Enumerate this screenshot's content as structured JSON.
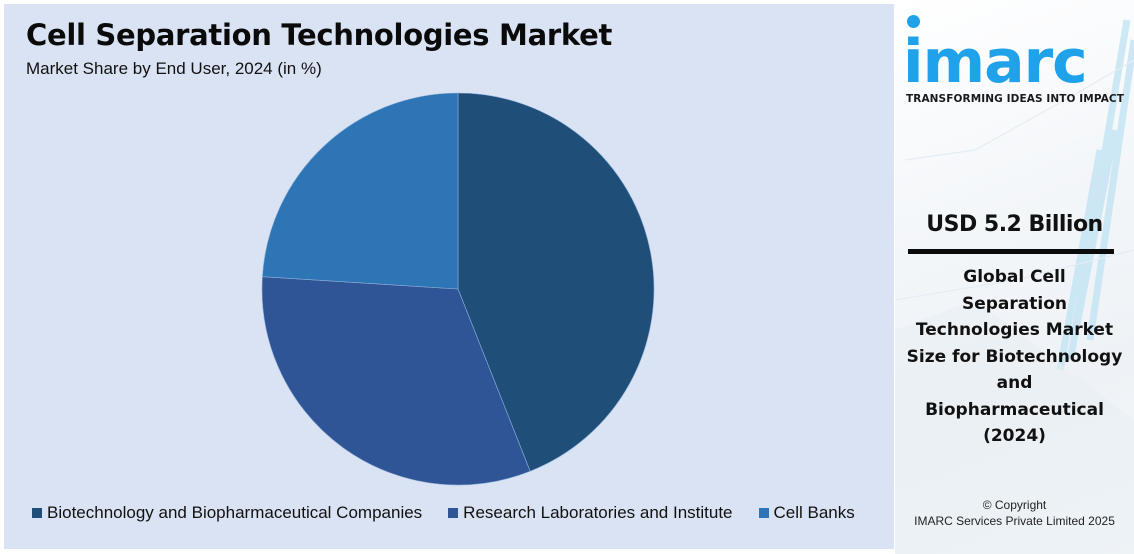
{
  "chart": {
    "title": "Cell Separation Technologies Market",
    "subtitle": "Market Share by End User, 2024 (in %)"
  },
  "legend": [
    {
      "label": "Biotechnology and Biopharmaceutical Companies",
      "color": "#1f4e79"
    },
    {
      "label": "Research Laboratories and Institute",
      "color": "#2f5597"
    },
    {
      "label": "Cell Banks",
      "color": "#2e75b6"
    }
  ],
  "side_panel": {
    "logo_text": "imarc",
    "tagline": "TRANSFORMING IDEAS INTO IMPACT",
    "value": "USD 5.2 Billion",
    "description": "Global Cell Separation Technologies Market Size for Biotechnology and Biopharmaceutical (2024)",
    "description_lines": [
      "Global Cell",
      "Separation",
      "Technologies Market",
      "Size for Biotechnology",
      "and",
      "Biopharmaceutical",
      "(2024)"
    ],
    "copyright_line1": "© Copyright",
    "copyright_line2": "IMARC Services Private Limited 2025",
    "brand_color": "#1fa2ea"
  },
  "chart_data": {
    "type": "pie",
    "title": "Cell Separation Technologies Market",
    "subtitle": "Market Share by End User, 2024 (in %)",
    "categories": [
      "Biotechnology and Biopharmaceutical Companies",
      "Research Laboratories and Institute",
      "Cell Banks"
    ],
    "values": [
      44,
      32,
      24
    ],
    "colors": [
      "#1f4e79",
      "#2f5597",
      "#2e75b6"
    ],
    "start_angle": "12 o'clock, clockwise",
    "legend_position": "bottom",
    "data_labels": false
  }
}
